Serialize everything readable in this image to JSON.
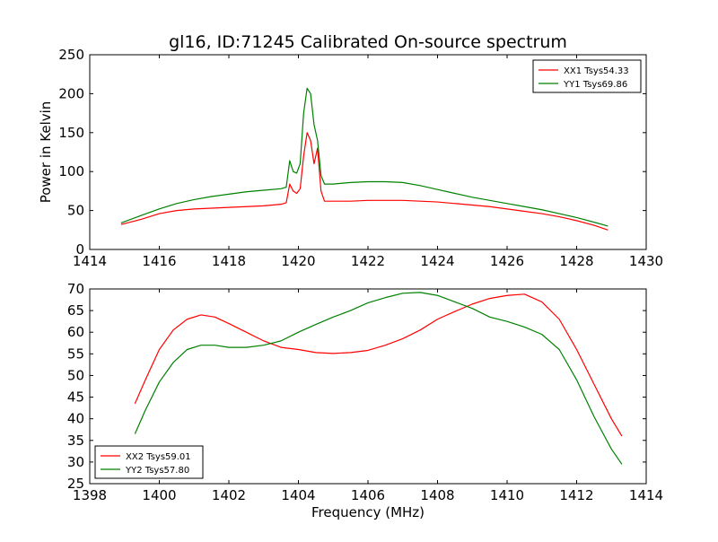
{
  "figure": {
    "title": "gl16, ID:71245 Calibrated On-source spectrum"
  },
  "colors": {
    "series_red": "#ff0000",
    "series_green": "#008000",
    "axes": "#000000",
    "background": "#ffffff"
  },
  "chart_data": [
    {
      "type": "line",
      "title": "gl16, ID:71245 Calibrated On-source spectrum",
      "xlabel": "",
      "ylabel": "Power in Kelvin",
      "xlim": [
        1414,
        1430
      ],
      "ylim": [
        0,
        250
      ],
      "xticks": [
        1414,
        1416,
        1418,
        1420,
        1422,
        1424,
        1426,
        1428,
        1430
      ],
      "yticks": [
        0,
        50,
        100,
        150,
        200,
        250
      ],
      "grid": false,
      "legend_position": "top-right",
      "series": [
        {
          "name": "XX1 Tsys54.33",
          "color": "#ff0000",
          "x": [
            1414.9,
            1415.5,
            1416.0,
            1416.5,
            1417.0,
            1417.5,
            1418.0,
            1418.5,
            1419.0,
            1419.5,
            1419.65,
            1419.75,
            1419.85,
            1419.95,
            1420.05,
            1420.15,
            1420.25,
            1420.35,
            1420.45,
            1420.55,
            1420.65,
            1420.75,
            1421.0,
            1421.5,
            1422.0,
            1422.5,
            1423.0,
            1423.5,
            1424.0,
            1424.5,
            1425.0,
            1425.5,
            1426.0,
            1426.5,
            1427.0,
            1427.5,
            1428.0,
            1428.5,
            1428.9
          ],
          "values": [
            32,
            39,
            46,
            50,
            52,
            53,
            54,
            55,
            56,
            58,
            60,
            84,
            75,
            72,
            78,
            120,
            150,
            140,
            110,
            130,
            75,
            62,
            62,
            62,
            63,
            63,
            63,
            62,
            61,
            59,
            57,
            55,
            52,
            49,
            46,
            42,
            37,
            31,
            25
          ]
        },
        {
          "name": "YY1 Tsys69.86",
          "color": "#008000",
          "x": [
            1414.9,
            1415.5,
            1416.0,
            1416.5,
            1417.0,
            1417.5,
            1418.0,
            1418.5,
            1419.0,
            1419.5,
            1419.65,
            1419.75,
            1419.85,
            1419.95,
            1420.05,
            1420.15,
            1420.25,
            1420.35,
            1420.45,
            1420.55,
            1420.65,
            1420.75,
            1421.0,
            1421.5,
            1422.0,
            1422.5,
            1423.0,
            1423.5,
            1424.0,
            1424.5,
            1425.0,
            1425.5,
            1426.0,
            1426.5,
            1427.0,
            1427.5,
            1428.0,
            1428.5,
            1428.9
          ],
          "values": [
            34,
            44,
            52,
            59,
            64,
            68,
            71,
            74,
            76,
            78,
            80,
            114,
            100,
            98,
            110,
            175,
            207,
            200,
            160,
            140,
            95,
            84,
            84,
            86,
            87,
            87,
            86,
            82,
            77,
            72,
            67,
            63,
            59,
            55,
            51,
            46,
            41,
            35,
            30
          ]
        }
      ]
    },
    {
      "type": "line",
      "title": "",
      "xlabel": "Frequency (MHz)",
      "ylabel": "",
      "xlim": [
        1398,
        1414
      ],
      "ylim": [
        25,
        70
      ],
      "xticks": [
        1398,
        1400,
        1402,
        1404,
        1406,
        1408,
        1410,
        1412,
        1414
      ],
      "yticks": [
        25,
        30,
        35,
        40,
        45,
        50,
        55,
        60,
        65,
        70
      ],
      "grid": false,
      "legend_position": "bottom-left",
      "series": [
        {
          "name": "XX2 Tsys59.01",
          "color": "#ff0000",
          "x": [
            1399.3,
            1399.6,
            1400.0,
            1400.4,
            1400.8,
            1401.2,
            1401.6,
            1402.0,
            1402.5,
            1403.0,
            1403.5,
            1404.0,
            1404.5,
            1405.0,
            1405.5,
            1406.0,
            1406.5,
            1407.0,
            1407.5,
            1408.0,
            1408.5,
            1409.0,
            1409.5,
            1410.0,
            1410.5,
            1411.0,
            1411.5,
            1412.0,
            1412.5,
            1413.0,
            1413.3
          ],
          "values": [
            43.5,
            49,
            56,
            60.5,
            63,
            64,
            63.5,
            62,
            60,
            58,
            56.5,
            56,
            55.3,
            55.1,
            55.3,
            55.8,
            57,
            58.5,
            60.5,
            63,
            64.8,
            66.5,
            67.8,
            68.5,
            68.8,
            67,
            63,
            56,
            48,
            40,
            36
          ]
        },
        {
          "name": "YY2 Tsys57.80",
          "color": "#008000",
          "x": [
            1399.3,
            1399.6,
            1400.0,
            1400.4,
            1400.8,
            1401.2,
            1401.6,
            1402.0,
            1402.5,
            1403.0,
            1403.5,
            1404.0,
            1404.5,
            1405.0,
            1405.5,
            1406.0,
            1406.5,
            1407.0,
            1407.5,
            1408.0,
            1408.5,
            1409.0,
            1409.5,
            1410.0,
            1410.5,
            1411.0,
            1411.5,
            1412.0,
            1412.5,
            1413.0,
            1413.3
          ],
          "values": [
            36.5,
            42,
            48.5,
            53,
            56,
            57,
            57,
            56.5,
            56.5,
            57,
            58,
            60,
            61.8,
            63.5,
            65,
            66.8,
            68,
            69,
            69.2,
            68.5,
            67,
            65.5,
            63.5,
            62.5,
            61.2,
            59.5,
            56,
            49,
            40.5,
            33,
            29.5
          ]
        }
      ]
    }
  ]
}
